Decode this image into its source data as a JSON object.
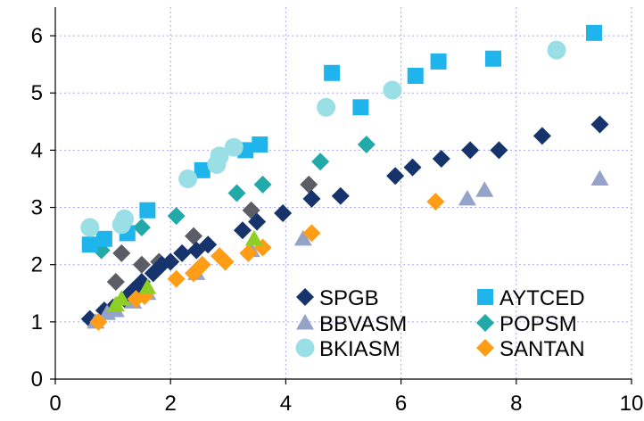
{
  "chart_data": {
    "type": "scatter",
    "title": "",
    "xlabel": "",
    "ylabel": "",
    "xlim": [
      0,
      10
    ],
    "ylim": [
      0,
      6.5
    ],
    "xticks": [
      "0",
      "2",
      "4",
      "6",
      "8",
      "10"
    ],
    "yticks": [
      "0",
      "1",
      "2",
      "3",
      "4",
      "5",
      "6"
    ],
    "grid": "dotted",
    "legend_position": "bottom-right",
    "series": [
      {
        "name": "SPGB",
        "color": "#16336b",
        "marker": "diamond",
        "points": [
          [
            0.6,
            1.05
          ],
          [
            0.85,
            1.2
          ],
          [
            1.0,
            1.25
          ],
          [
            1.2,
            1.4
          ],
          [
            1.35,
            1.55
          ],
          [
            1.5,
            1.7
          ],
          [
            1.7,
            1.85
          ],
          [
            1.85,
            2.0
          ],
          [
            2.0,
            2.05
          ],
          [
            2.2,
            2.2
          ],
          [
            2.45,
            2.25
          ],
          [
            2.65,
            2.35
          ],
          [
            3.25,
            2.6
          ],
          [
            3.5,
            2.75
          ],
          [
            3.95,
            2.9
          ],
          [
            4.45,
            3.15
          ],
          [
            4.95,
            3.2
          ],
          [
            5.9,
            3.55
          ],
          [
            6.2,
            3.7
          ],
          [
            6.7,
            3.85
          ],
          [
            7.2,
            4.0
          ],
          [
            7.7,
            4.0
          ],
          [
            8.45,
            4.25
          ],
          [
            9.45,
            4.45
          ]
        ]
      },
      {
        "name": "BBVASM",
        "color": "#95a3c9",
        "marker": "triangle",
        "points": [
          [
            0.7,
            1.0
          ],
          [
            0.9,
            1.15
          ],
          [
            1.05,
            1.2
          ],
          [
            1.35,
            1.35
          ],
          [
            1.6,
            1.5
          ],
          [
            2.45,
            1.85
          ],
          [
            3.4,
            2.25
          ],
          [
            4.3,
            2.45
          ],
          [
            7.15,
            3.15
          ],
          [
            7.45,
            3.3
          ],
          [
            9.45,
            3.5
          ]
        ]
      },
      {
        "name": "BKIASM",
        "color": "#9adfe6",
        "marker": "circle",
        "points": [
          [
            0.6,
            2.65
          ],
          [
            1.15,
            2.7
          ],
          [
            1.2,
            2.8
          ],
          [
            2.3,
            3.5
          ],
          [
            2.8,
            3.75
          ],
          [
            2.85,
            3.9
          ],
          [
            3.1,
            4.05
          ],
          [
            4.7,
            4.75
          ],
          [
            5.85,
            5.05
          ],
          [
            8.7,
            5.75
          ]
        ]
      },
      {
        "name": "AYTCED",
        "color": "#1fb4ec",
        "marker": "square",
        "points": [
          [
            0.6,
            2.35
          ],
          [
            0.85,
            2.45
          ],
          [
            1.25,
            2.55
          ],
          [
            1.6,
            2.95
          ],
          [
            2.55,
            3.65
          ],
          [
            3.3,
            4.0
          ],
          [
            3.55,
            4.1
          ],
          [
            4.8,
            5.35
          ],
          [
            5.3,
            4.75
          ],
          [
            6.25,
            5.3
          ],
          [
            6.65,
            5.55
          ],
          [
            7.6,
            5.6
          ],
          [
            9.35,
            6.05
          ]
        ]
      },
      {
        "name": "POPSM",
        "color": "#21aaa9",
        "marker": "diamond",
        "points": [
          [
            0.8,
            2.25
          ],
          [
            1.5,
            2.65
          ],
          [
            2.1,
            2.85
          ],
          [
            3.15,
            3.25
          ],
          [
            3.6,
            3.4
          ],
          [
            4.6,
            3.8
          ],
          [
            5.4,
            4.1
          ]
        ]
      },
      {
        "name": "SANTAN",
        "color": "#ff9d17",
        "marker": "diamond",
        "points": [
          [
            0.75,
            1.0
          ],
          [
            1.4,
            1.4
          ],
          [
            1.55,
            1.45
          ],
          [
            2.1,
            1.75
          ],
          [
            2.4,
            1.85
          ],
          [
            2.55,
            2.0
          ],
          [
            2.85,
            2.15
          ],
          [
            2.95,
            2.05
          ],
          [
            3.35,
            2.2
          ],
          [
            3.6,
            2.3
          ],
          [
            4.45,
            2.55
          ],
          [
            6.6,
            3.1
          ]
        ]
      },
      {
        "name": "",
        "color": "#5a5d66",
        "marker": "diamond",
        "points": [
          [
            1.05,
            1.7
          ],
          [
            1.15,
            2.2
          ],
          [
            1.5,
            2.0
          ],
          [
            1.8,
            2.05
          ],
          [
            2.4,
            2.5
          ],
          [
            3.4,
            2.95
          ],
          [
            4.4,
            3.4
          ]
        ]
      },
      {
        "name": "",
        "color": "#8fcf25",
        "marker": "triangle",
        "points": [
          [
            1.05,
            1.3
          ],
          [
            1.15,
            1.4
          ],
          [
            1.6,
            1.6
          ],
          [
            3.45,
            2.45
          ]
        ]
      }
    ],
    "legend": [
      {
        "label": "SPGB",
        "marker": "diamond",
        "color": "#16336b"
      },
      {
        "label": "AYTCED",
        "marker": "square",
        "color": "#1fb4ec"
      },
      {
        "label": "BBVASM",
        "marker": "triangle",
        "color": "#95a3c9"
      },
      {
        "label": "POPSM",
        "marker": "diamond",
        "color": "#21aaa9"
      },
      {
        "label": "BKIASM",
        "marker": "circle",
        "color": "#9adfe6"
      },
      {
        "label": "SANTAN",
        "marker": "diamond",
        "color": "#ff9d17"
      }
    ]
  }
}
